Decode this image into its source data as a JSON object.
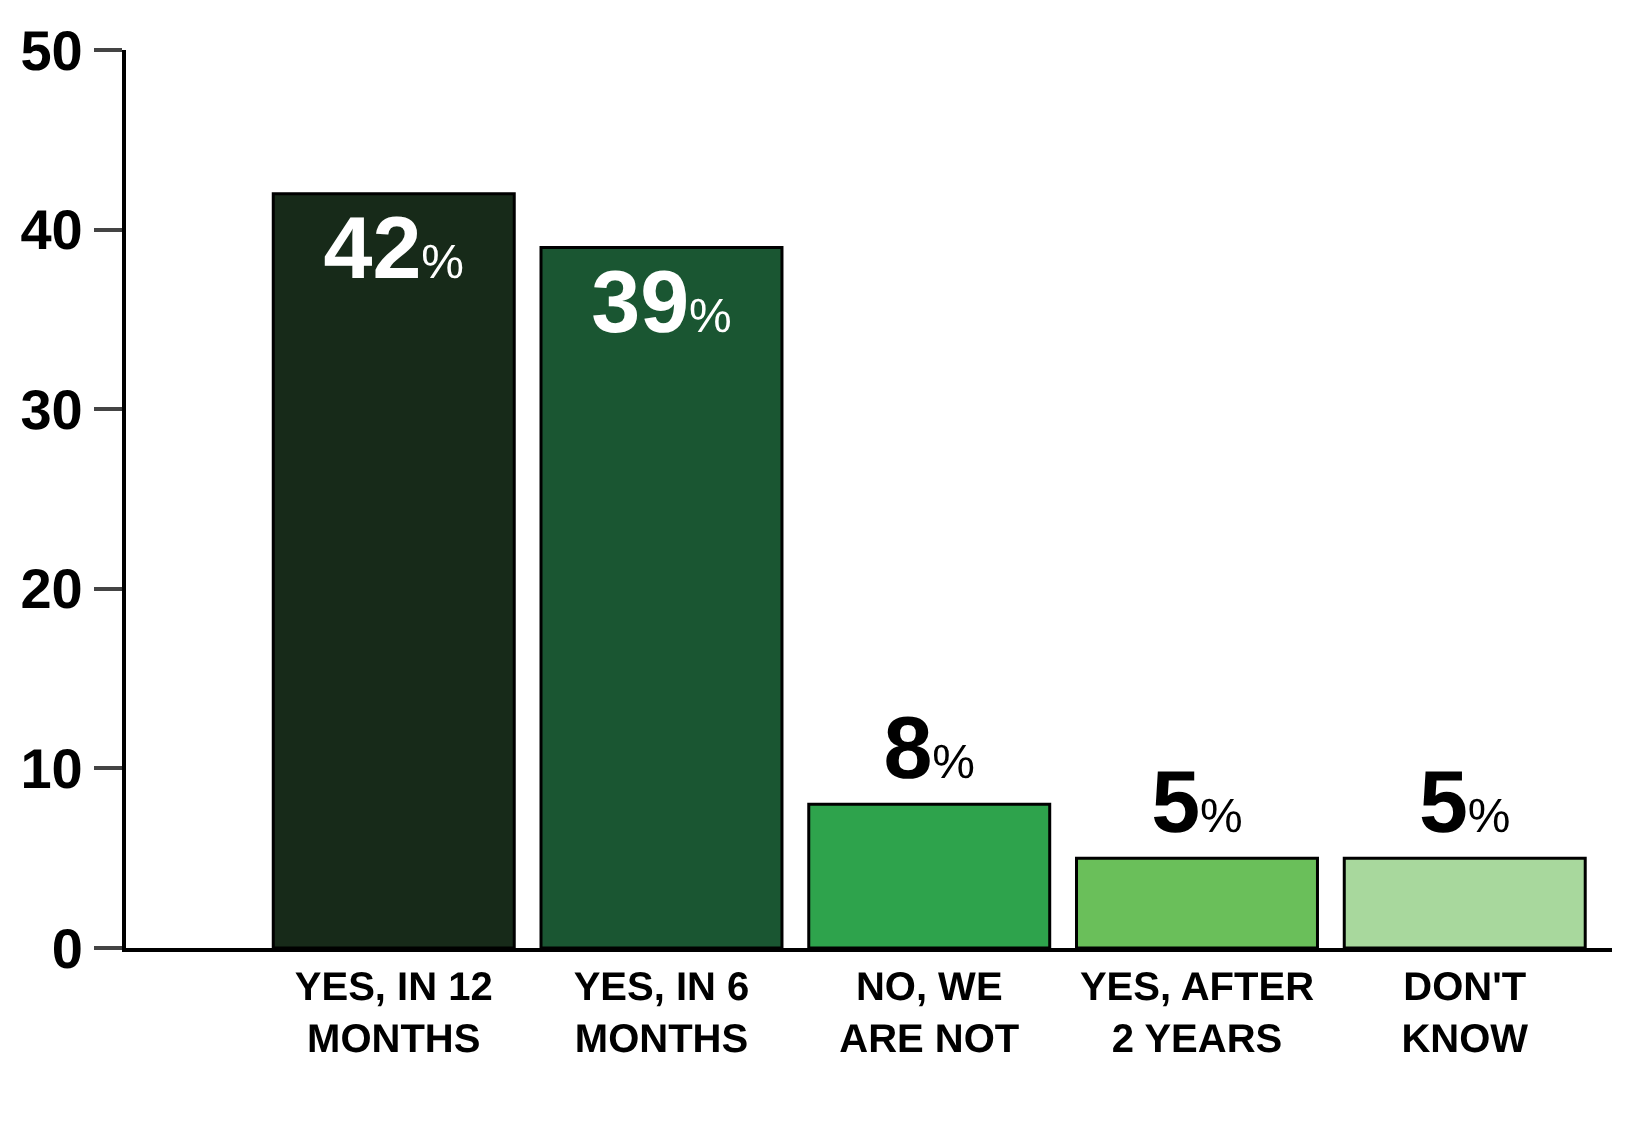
{
  "chart_data": {
    "type": "bar",
    "categories": [
      "YES, IN 12\nMONTHS",
      "YES, IN 6\nMONTHS",
      "NO, WE\nARE NOT",
      "YES, AFTER\n2 YEARS",
      "DON'T\nKNOW"
    ],
    "values": [
      42,
      39,
      8,
      5,
      5
    ],
    "colors": [
      "#172a19",
      "#1a5632",
      "#2ea34c",
      "#6abf5a",
      "#a8d89d"
    ],
    "value_labels": [
      "42%",
      "39%",
      "8%",
      "5%",
      "5%"
    ],
    "ylim": [
      0,
      50
    ],
    "yticks": [
      0,
      10,
      20,
      30,
      40,
      50
    ],
    "legend": false
  }
}
